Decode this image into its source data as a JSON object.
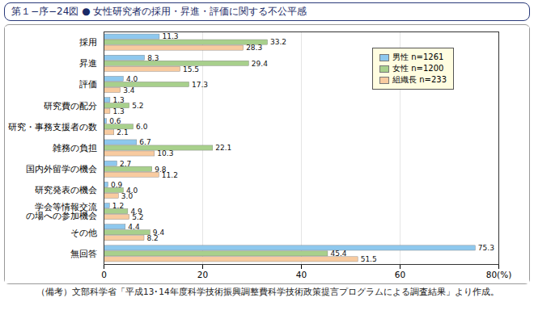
{
  "chart_data": {
    "type": "bar",
    "orientation": "horizontal",
    "title": "第１−序−24図 ● 女性研究者の採用・昇進・評価に関する不公平感",
    "annotations": [
      "（備考）文部科学省「平成13･14年度科学技術振興調整費科学技術政策提言プログラムによる調査結果」より作成。"
    ],
    "categories": [
      "採用",
      "昇進",
      "評価",
      "研究費の配分",
      "研究・事務支援者の数",
      "雑務の負担",
      "国内外留学の機会",
      "研究発表の機会",
      "学会等情報交流\nの場への参加機会",
      "その他",
      "無回答"
    ],
    "series": [
      {
        "name": "男性 n=1261",
        "color": "#8ec8ee",
        "values": [
          11.3,
          8.3,
          4.0,
          1.3,
          0.6,
          6.7,
          2.7,
          0.9,
          1.2,
          4.4,
          75.3
        ],
        "value_labels": [
          "11.3",
          "8.3",
          "4.0",
          "1.3",
          "0.6",
          "6.7",
          "2.7",
          "0.9",
          "1.2",
          "4.4",
          "75.3"
        ]
      },
      {
        "name": "女性 n=1200",
        "color": "#a8d08c",
        "values": [
          33.2,
          29.4,
          17.3,
          5.2,
          6.0,
          22.1,
          9.8,
          4.0,
          4.9,
          9.4,
          45.4
        ],
        "value_labels": [
          "33.2",
          "29.4",
          "17.3",
          "5.2",
          "6.0",
          "22.1",
          "9.8",
          "4.0",
          "4.9",
          "9.4",
          "45.4"
        ]
      },
      {
        "name": "組織長 n=233",
        "color": "#f8cba0",
        "values": [
          28.3,
          15.5,
          3.4,
          1.3,
          2.1,
          10.3,
          11.2,
          3.0,
          5.2,
          8.2,
          51.5
        ],
        "value_labels": [
          "28.3",
          "15.5",
          "3.4",
          "1.3",
          "2.1",
          "10.3",
          "11.2",
          "3.0",
          "5.2",
          "8.2",
          "51.5"
        ]
      }
    ],
    "xlim": [
      0,
      80
    ],
    "xticks": [
      0,
      20,
      40,
      60,
      {
        "value": 80,
        "label": "80(%)"
      }
    ],
    "grid": true,
    "legend": "top-right",
    "data_labels": true
  }
}
